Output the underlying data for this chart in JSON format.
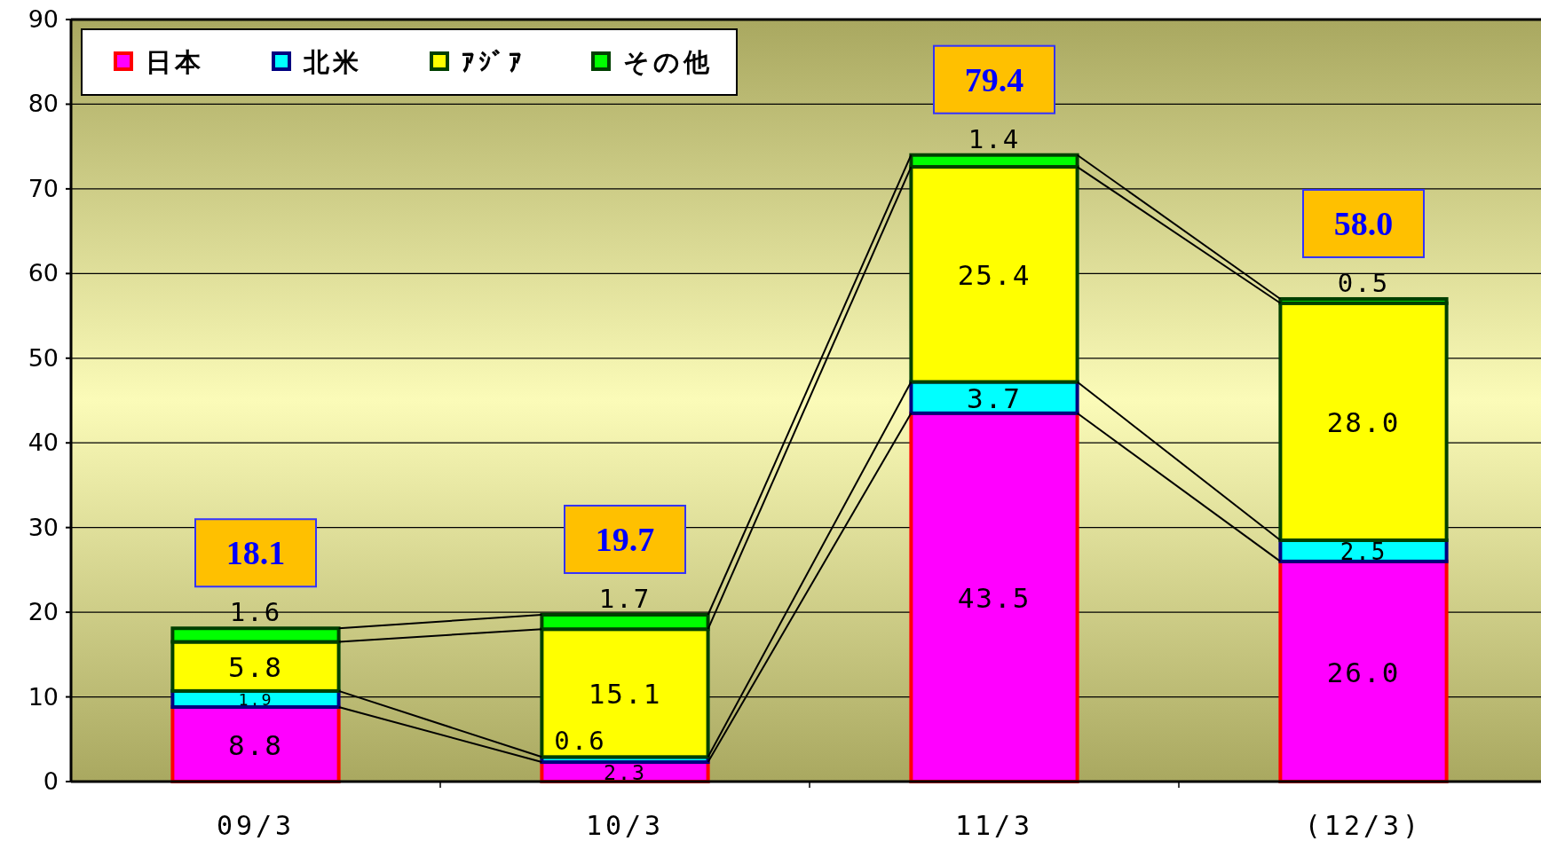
{
  "chart_data": {
    "type": "bar",
    "stacked": true,
    "categories": [
      "09/3",
      "10/3",
      "11/3",
      "(12/3)"
    ],
    "series": [
      {
        "name": "日本",
        "color": "#ff00ff",
        "values": [
          8.8,
          2.3,
          43.5,
          26.0
        ],
        "value_labels": [
          "8.8",
          "2.3",
          "43.5",
          "26.0"
        ]
      },
      {
        "name": "北米",
        "color": "#00ffff",
        "values": [
          1.9,
          0.6,
          3.7,
          2.5
        ],
        "value_labels": [
          "1.9",
          "0.6",
          "3.7",
          "2.5"
        ]
      },
      {
        "name": "ｱｼﾞｱ",
        "color": "#ffff00",
        "values": [
          5.8,
          15.1,
          25.4,
          28.0
        ],
        "value_labels": [
          "5.8",
          "15.1",
          "25.4",
          "28.0"
        ]
      },
      {
        "name": "その他",
        "color": "#00ff00",
        "values": [
          1.6,
          1.7,
          1.4,
          0.5
        ],
        "value_labels": [
          "1.6",
          "1.7",
          "1.4",
          "0.5"
        ]
      }
    ],
    "annotations": [
      "18.1",
      "19.7",
      "79.4",
      "58.0"
    ],
    "ylim": [
      0,
      90
    ],
    "yticks": [
      0,
      10,
      20,
      30,
      40,
      50,
      60,
      70,
      80,
      90
    ],
    "grid": "y",
    "legend": "top left"
  }
}
